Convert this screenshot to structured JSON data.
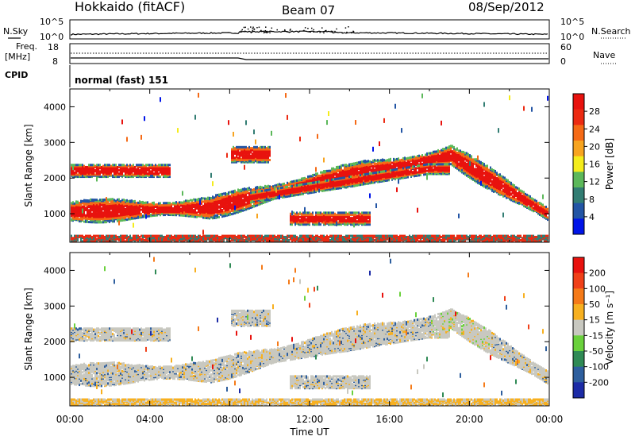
{
  "header": {
    "station": "Hokkaido (fitACF)",
    "beam": "Beam 07",
    "date": "08/Sep/2012"
  },
  "strip": {
    "nsky_label": "N.Sky",
    "nsky_ticks": [
      "10^5",
      "10^0"
    ],
    "nsearch_label": "N.Search",
    "nsearch_ticks": [
      "10^5",
      "10^0"
    ],
    "freq_label": "Freq.",
    "freq_unit": "[MHz]",
    "freq_ticks": [
      "18",
      "8"
    ],
    "nave_label": "Nave",
    "nave_ticks": [
      "60",
      "0"
    ],
    "cpid_label": "CPID",
    "cpid_value": "normal (fast) 151"
  },
  "chart_data": [
    {
      "type": "heatmap",
      "name": "power",
      "ylabel": "Slant Range [km]",
      "ylim": [
        200,
        4500
      ],
      "yticks": [
        "4000",
        "3000",
        "2000",
        "1000"
      ],
      "yticks_val": [
        4000,
        3000,
        2000,
        1000
      ],
      "colorbar_label": "Power [dB]",
      "colorbar_ticks": [
        "28",
        "24",
        "20",
        "16",
        "12",
        "8",
        "4"
      ],
      "colorbar_colors": [
        "#0014e8",
        "#2355a5",
        "#327d73",
        "#5cb85a",
        "#f4ec1c",
        "#f7a420",
        "#f56a16",
        "#ec2a12",
        "#e8120e"
      ]
    },
    {
      "type": "heatmap",
      "name": "velocity",
      "ylabel": "Slant Range [km]",
      "ylim": [
        200,
        4500
      ],
      "yticks": [
        "4000",
        "3000",
        "2000",
        "1000"
      ],
      "yticks_val": [
        4000,
        3000,
        2000,
        1000
      ],
      "colorbar_label": "Velocity [m s⁻¹]",
      "colorbar_ticks": [
        "200",
        "100",
        "50",
        "15",
        "-15",
        "-50",
        "-100",
        "-200"
      ],
      "colorbar_colors": [
        "#1c2ba6",
        "#2e5f9e",
        "#2f8a55",
        "#6ad13c",
        "#c8c8c0",
        "#f7b020",
        "#f57a18",
        "#f04018",
        "#e8120e"
      ]
    }
  ],
  "xaxis": {
    "ticks": [
      "00:00",
      "04:00",
      "08:00",
      "12:00",
      "16:00",
      "20:00",
      "00:00"
    ],
    "xlabel": "Time UT",
    "xlim": [
      0,
      24
    ]
  }
}
